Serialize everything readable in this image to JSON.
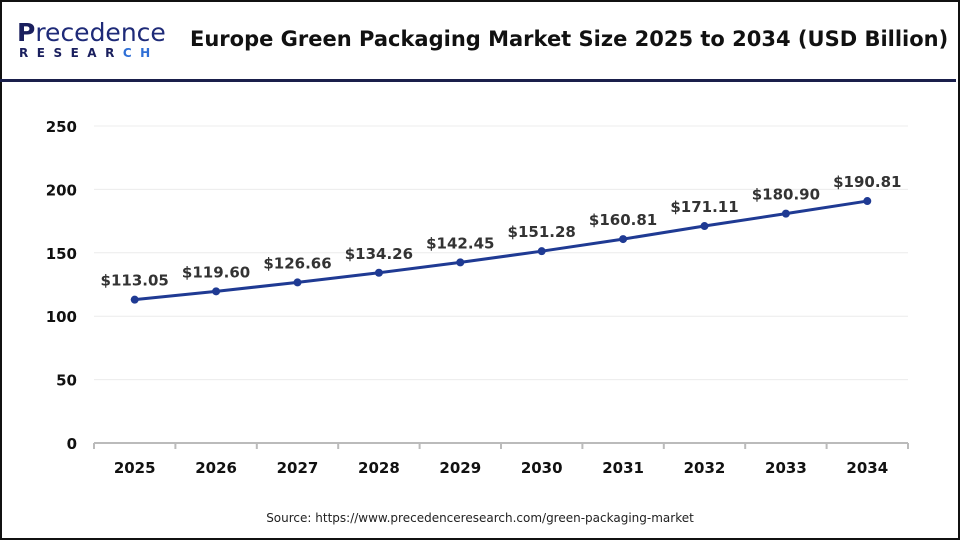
{
  "header": {
    "logo_text": "Precedence",
    "logo_subtext": "RESEARCH",
    "title": "Europe Green Packaging Market Size 2025 to 2034 (USD Billion)"
  },
  "source": "Source: https://www.precedenceresearch.com/green-packaging-market",
  "chart_data": {
    "type": "line",
    "title": "Europe Green Packaging Market Size 2025 to 2034 (USD Billion)",
    "categories": [
      "2025",
      "2026",
      "2027",
      "2028",
      "2029",
      "2030",
      "2031",
      "2032",
      "2033",
      "2034"
    ],
    "series": [
      {
        "values": [
          113.05,
          119.6,
          126.66,
          134.26,
          142.45,
          151.28,
          160.81,
          171.11,
          180.9,
          190.81
        ],
        "labels": [
          "$113.05",
          "$119.60",
          "$126.66",
          "$134.26",
          "$142.45",
          "$151.28",
          "$160.81",
          "$171.11",
          "$180.90",
          "$190.81"
        ],
        "color": "#1f3a93"
      }
    ],
    "yticks": [
      "0",
      "50",
      "100",
      "150",
      "200",
      "250"
    ],
    "ylim": [
      0,
      250
    ],
    "grid": true,
    "xlabel": "",
    "ylabel": ""
  }
}
